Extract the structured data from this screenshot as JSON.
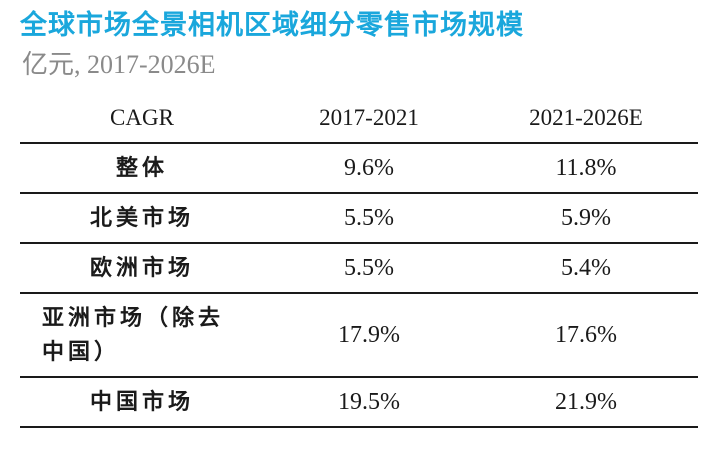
{
  "title": "全球市场全景相机区域细分零售市场规模",
  "subtitle": "亿元, 2017-2026E",
  "table": {
    "headers": [
      "CAGR",
      "2017-2021",
      "2021-2026E"
    ],
    "rows": [
      {
        "region": "整体",
        "cagr_2017_2021": "9.6%",
        "cagr_2021_2026e": "11.8%"
      },
      {
        "region": "北美市场",
        "cagr_2017_2021": "5.5%",
        "cagr_2021_2026e": "5.9%"
      },
      {
        "region": "欧洲市场",
        "cagr_2017_2021": "5.5%",
        "cagr_2021_2026e": "5.4%"
      },
      {
        "region": "亚洲市场（除去中国）",
        "cagr_2017_2021": "17.9%",
        "cagr_2021_2026e": "17.6%"
      },
      {
        "region": "中国市场",
        "cagr_2017_2021": "19.5%",
        "cagr_2021_2026e": "21.9%"
      }
    ]
  },
  "colors": {
    "title": "#1aa7dc",
    "subtitle": "#8a8a8a",
    "rule": "#1a1a1a"
  }
}
